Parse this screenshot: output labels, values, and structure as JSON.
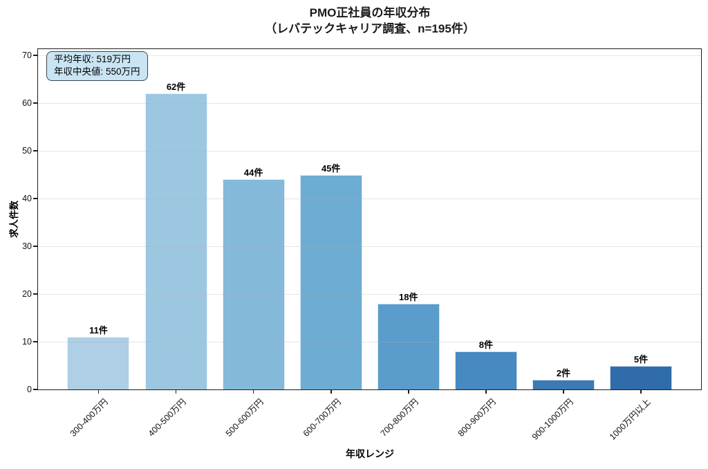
{
  "title": {
    "line1": "PMO正社員の年収分布",
    "line2": "（レバテックキャリア調査、n=195件）"
  },
  "annotation": {
    "line1": "平均年収: 519万円",
    "line2": "年収中央値: 550万円"
  },
  "chart_data": {
    "type": "bar",
    "title": "PMO正社員の年収分布（レバテックキャリア調査、n=195件）",
    "categories": [
      "300-400万円",
      "400-500万円",
      "500-600万円",
      "600-700万円",
      "700-800万円",
      "800-900万円",
      "900-1000万円",
      "1000万円以上"
    ],
    "values": [
      11,
      62,
      44,
      45,
      18,
      8,
      2,
      5
    ],
    "unit_suffix": "件",
    "n_total": 195,
    "xlabel": "年収レンジ",
    "ylabel": "求人件数",
    "ylim": [
      0,
      70
    ],
    "yticks": [
      0,
      10,
      20,
      30,
      40,
      50,
      60,
      70
    ],
    "grid": "y",
    "legend": "none",
    "x_tick_rotation_deg": 45,
    "annotations": [
      "平均年収: 519万円",
      "年収中央値: 550万円"
    ],
    "bar_colors": [
      "#aecfe5",
      "#9cc7e1",
      "#84b9da",
      "#6dacd3",
      "#5a9ccb",
      "#4789c1",
      "#3b7ab5",
      "#316caa"
    ]
  },
  "colors": {
    "background": "#ffffff",
    "spine": "#1c1c1c",
    "grid": "#b0b0b0",
    "annotation_bg": "#c9e4f2",
    "annotation_border": "#36454f",
    "text": "#000000"
  }
}
